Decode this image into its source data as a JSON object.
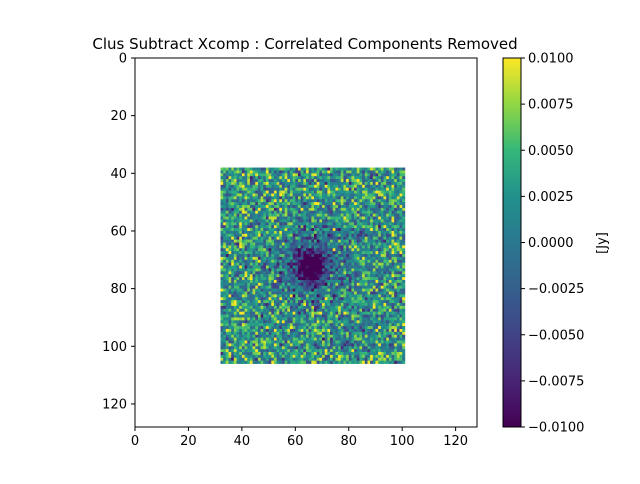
{
  "chart_data": {
    "type": "heatmap",
    "title": "Clus Subtract Xcomp : Correlated Components Removed",
    "xlabel": "",
    "ylabel": "",
    "xlim": [
      0,
      128
    ],
    "ylim": [
      128,
      0
    ],
    "x_ticks": [
      "0",
      "20",
      "40",
      "60",
      "80",
      "100",
      "120"
    ],
    "y_ticks": [
      "0",
      "20",
      "40",
      "60",
      "80",
      "100",
      "120"
    ],
    "data_region": {
      "x": [
        32,
        101
      ],
      "y": [
        38,
        106
      ]
    },
    "cell_size": 1,
    "colormap": "viridis",
    "colorbar": {
      "label": "[Jy]",
      "vmin": -0.01,
      "vmax": 0.01,
      "ticks": [
        "0.0100",
        "0.0075",
        "0.0050",
        "0.0025",
        "0.0000",
        "−0.0025",
        "−0.0050",
        "−0.0075",
        "−0.0100"
      ]
    },
    "features": {
      "deep_minimum_center": [
        66,
        72
      ],
      "minimum_value": -0.01,
      "noise_level": 0.004
    },
    "grid": false
  }
}
